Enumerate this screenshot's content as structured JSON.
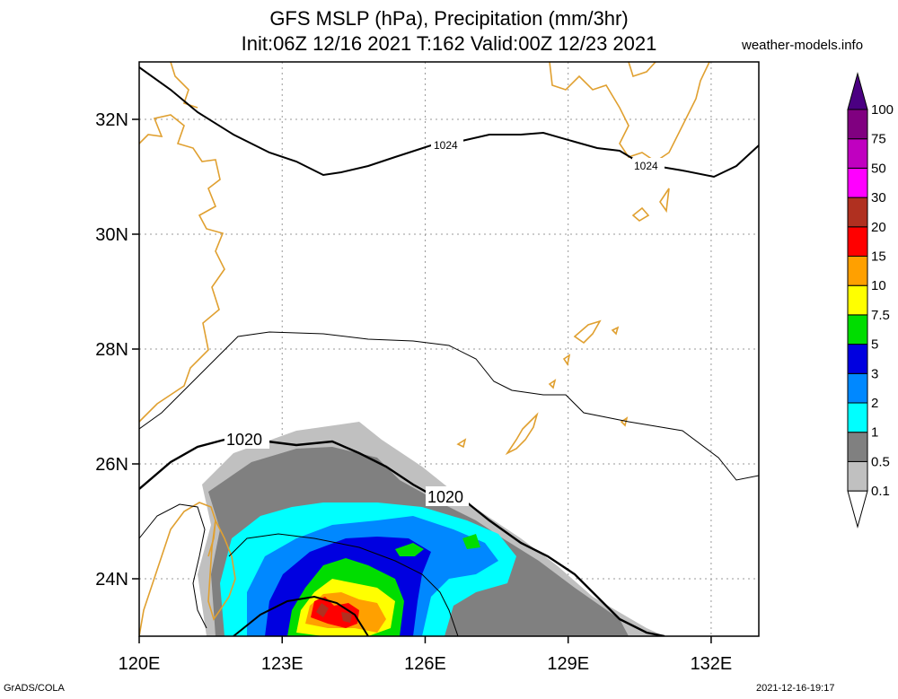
{
  "header": {
    "title_line1": "GFS MSLP (hPa), Precipitation (mm/3hr)",
    "title_line2": "Init:06Z 12/16 2021 T:162 Valid:00Z 12/23 2021",
    "site": "weather-models.info"
  },
  "footer": {
    "left": "GrADS/COLA",
    "right": "2021-12-16-19:17"
  },
  "map": {
    "lon_range": [
      120,
      133
    ],
    "lat_range": [
      23,
      33
    ],
    "lon_ticks": [
      "120E",
      "123E",
      "126E",
      "129E",
      "132E"
    ],
    "lat_ticks": [
      "24N",
      "26N",
      "28N",
      "30N",
      "32N"
    ],
    "isobar_labels": [
      "1024",
      "1024",
      "1020",
      "1020"
    ],
    "coastline_color": "#e0a030"
  },
  "colorbar": {
    "labels": [
      "0.1",
      "0.5",
      "1",
      "2",
      "3",
      "5",
      "7.5",
      "10",
      "15",
      "20",
      "30",
      "50",
      "75",
      "100"
    ],
    "colors": [
      "#ffffff",
      "#c0c0c0",
      "#808080",
      "#00ffff",
      "#0088ff",
      "#0000e0",
      "#00dd00",
      "#ffff00",
      "#ffa000",
      "#ff0000",
      "#b03020",
      "#ff00ff",
      "#c000c0",
      "#800080",
      "#4b0082"
    ]
  }
}
